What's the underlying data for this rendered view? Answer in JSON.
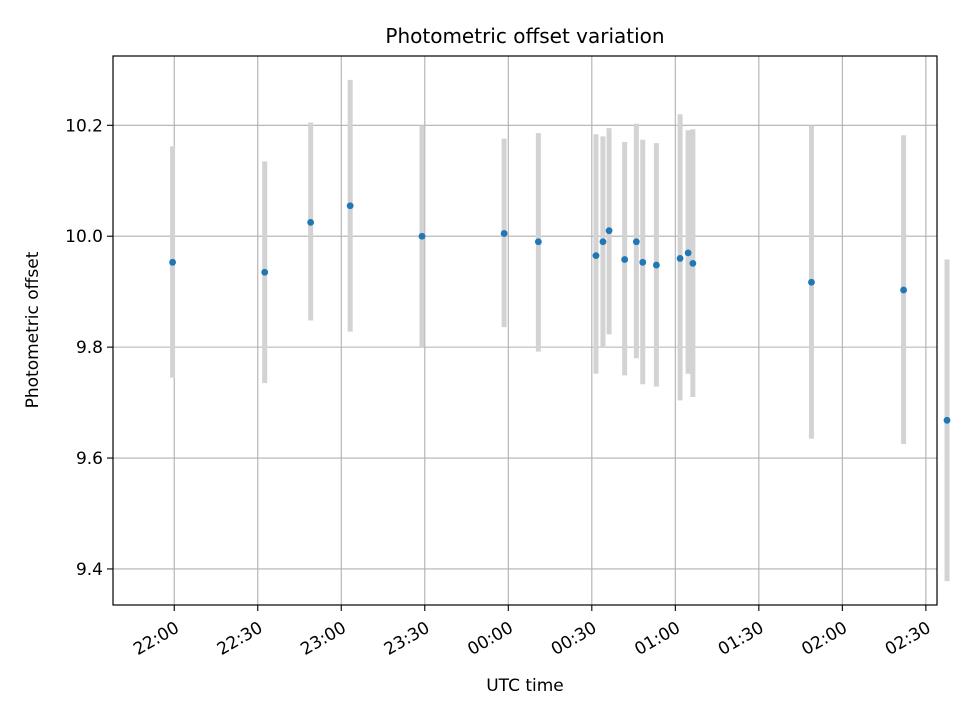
{
  "chart_data": {
    "type": "scatter",
    "title": "Photometric offset variation",
    "xlabel": "UTC time",
    "ylabel": "Photometric offset",
    "x_units": "minutes after 21:00 UTC",
    "xlim": [
      38,
      334
    ],
    "ylim": [
      9.335,
      10.325
    ],
    "x_ticks": [
      {
        "t": 60,
        "label": "22:00"
      },
      {
        "t": 90,
        "label": "22:30"
      },
      {
        "t": 120,
        "label": "23:00"
      },
      {
        "t": 150,
        "label": "23:30"
      },
      {
        "t": 180,
        "label": "00:00"
      },
      {
        "t": 210,
        "label": "00:30"
      },
      {
        "t": 240,
        "label": "01:00"
      },
      {
        "t": 270,
        "label": "01:30"
      },
      {
        "t": 300,
        "label": "02:00"
      },
      {
        "t": 330,
        "label": "02:30"
      }
    ],
    "y_ticks": [
      {
        "v": 9.4,
        "label": "9.4"
      },
      {
        "v": 9.6,
        "label": "9.6"
      },
      {
        "v": 9.8,
        "label": "9.8"
      },
      {
        "v": 10.0,
        "label": "10.0"
      },
      {
        "v": 10.2,
        "label": "10.2"
      }
    ],
    "grid": true,
    "point_color": "#1f77b4",
    "errorbar_color": "#d3d3d3",
    "points": [
      {
        "t": 59.4,
        "y": 9.953,
        "lo": 9.745,
        "hi": 10.162
      },
      {
        "t": 92.5,
        "y": 9.935,
        "lo": 9.735,
        "hi": 10.135
      },
      {
        "t": 109.0,
        "y": 10.025,
        "lo": 9.848,
        "hi": 10.205
      },
      {
        "t": 123.2,
        "y": 10.055,
        "lo": 9.828,
        "hi": 10.282
      },
      {
        "t": 149.0,
        "y": 10.0,
        "lo": 9.8,
        "hi": 10.2
      },
      {
        "t": 178.5,
        "y": 10.005,
        "lo": 9.836,
        "hi": 10.176
      },
      {
        "t": 190.8,
        "y": 9.99,
        "lo": 9.792,
        "hi": 10.186
      },
      {
        "t": 211.5,
        "y": 9.965,
        "lo": 9.752,
        "hi": 10.184
      },
      {
        "t": 214.0,
        "y": 9.99,
        "lo": 9.8,
        "hi": 10.18
      },
      {
        "t": 216.2,
        "y": 10.01,
        "lo": 9.823,
        "hi": 10.195
      },
      {
        "t": 221.8,
        "y": 9.958,
        "lo": 9.749,
        "hi": 10.17
      },
      {
        "t": 226.0,
        "y": 9.99,
        "lo": 9.78,
        "hi": 10.203
      },
      {
        "t": 228.3,
        "y": 9.953,
        "lo": 9.733,
        "hi": 10.174
      },
      {
        "t": 233.2,
        "y": 9.948,
        "lo": 9.729,
        "hi": 10.168
      },
      {
        "t": 241.7,
        "y": 9.96,
        "lo": 9.704,
        "hi": 10.22
      },
      {
        "t": 244.6,
        "y": 9.97,
        "lo": 9.752,
        "hi": 10.191
      },
      {
        "t": 246.3,
        "y": 9.951,
        "lo": 9.71,
        "hi": 10.193
      },
      {
        "t": 288.9,
        "y": 9.917,
        "lo": 9.635,
        "hi": 10.2
      },
      {
        "t": 322.0,
        "y": 9.903,
        "lo": 9.625,
        "hi": 10.182
      },
      {
        "t": 337.6,
        "y": 9.668,
        "lo": 9.378,
        "hi": 9.958
      }
    ]
  }
}
